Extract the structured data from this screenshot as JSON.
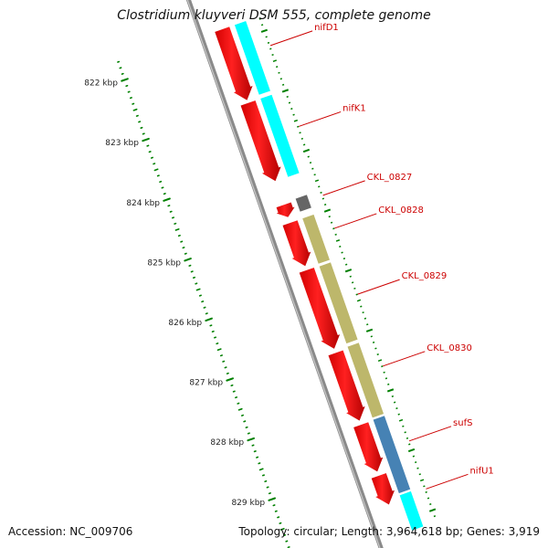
{
  "title": "Clostridium kluyveri DSM 555, complete genome",
  "footer": {
    "accession": "Accession: NC_009706",
    "summary": "Topology: circular; Length: 3,964,618 bp; Genes: 3,919"
  },
  "colors": {
    "backbone": "#8a8a8a",
    "cds": "#ff0000",
    "gene_cyan": "#00ffff",
    "gene_gray": "#666666",
    "gene_khaki": "#bdb76b",
    "gene_steelblue": "#4682b4",
    "label": "#cc0000",
    "ticks": "#008000"
  },
  "scale": {
    "unit": "kbp",
    "ticks": [
      {
        "kbp": 822,
        "label": "822 kbp"
      },
      {
        "kbp": 823,
        "label": "823 kbp"
      },
      {
        "kbp": 824,
        "label": "824 kbp"
      },
      {
        "kbp": 825,
        "label": "825 kbp"
      },
      {
        "kbp": 826,
        "label": "826 kbp"
      },
      {
        "kbp": 827,
        "label": "827 kbp"
      },
      {
        "kbp": 828,
        "label": "828 kbp"
      },
      {
        "kbp": 829,
        "label": "829 kbp"
      }
    ]
  },
  "features": {
    "cds": [
      {
        "start": 821.75,
        "end": 822.95
      },
      {
        "start": 822.98,
        "end": 824.3
      },
      {
        "start": 824.68,
        "end": 824.9
      },
      {
        "start": 824.98,
        "end": 825.72
      },
      {
        "start": 825.77,
        "end": 827.1
      },
      {
        "start": 827.15,
        "end": 828.3
      },
      {
        "start": 828.35,
        "end": 829.15
      },
      {
        "start": 829.2,
        "end": 829.7
      }
    ],
    "genes": [
      {
        "name": "nifD1",
        "start": 821.75,
        "end": 822.93,
        "color": "#00ffff"
      },
      {
        "name": "nifK1",
        "start": 822.98,
        "end": 824.3,
        "color": "#00ffff"
      },
      {
        "name": "CKL_0827",
        "start": 824.65,
        "end": 824.88,
        "color": "#666666"
      },
      {
        "name": "CKL_0828",
        "start": 824.98,
        "end": 825.75,
        "color": "#bdb76b"
      },
      {
        "name": "CKL_0829",
        "start": 825.78,
        "end": 827.08,
        "color": "#bdb76b"
      },
      {
        "name": "CKL_0830",
        "start": 827.12,
        "end": 828.32,
        "color": "#bdb76b"
      },
      {
        "name": "sufS",
        "start": 828.34,
        "end": 829.58,
        "color": "#4682b4"
      },
      {
        "name": "nifU1",
        "start": 829.6,
        "end": 830.2,
        "color": "#00ffff"
      }
    ]
  },
  "labels": [
    {
      "name": "nifD1",
      "text": "nifD1",
      "at": 822.25
    },
    {
      "name": "nifK1",
      "text": "nifK1",
      "at": 823.6
    },
    {
      "name": "CKL_0827",
      "text": "CKL_0827",
      "at": 824.75
    },
    {
      "name": "CKL_0828",
      "text": "CKL_0828",
      "at": 825.3
    },
    {
      "name": "CKL_0829",
      "text": "CKL_0829",
      "at": 826.4
    },
    {
      "name": "CKL_0830",
      "text": "CKL_0830",
      "at": 827.6
    },
    {
      "name": "sufS",
      "text": "sufS",
      "at": 828.85
    },
    {
      "name": "nifU1",
      "text": "nifU1",
      "at": 829.65
    }
  ]
}
